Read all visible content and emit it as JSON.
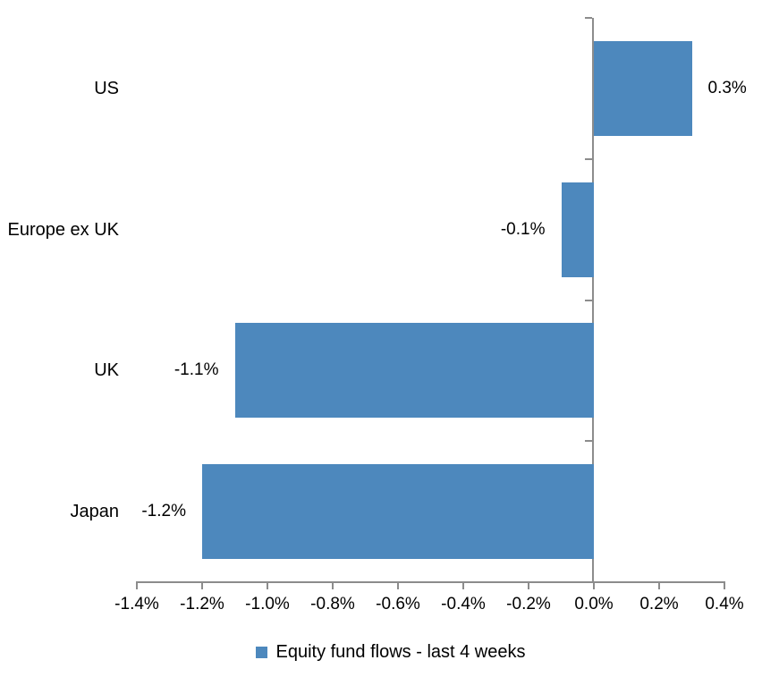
{
  "chart_data": {
    "type": "bar",
    "orientation": "horizontal",
    "title": "",
    "categories": [
      "US",
      "Europe ex UK",
      "UK",
      "Japan"
    ],
    "values": [
      0.3,
      -0.1,
      -1.1,
      -1.2
    ],
    "data_labels": [
      "0.3%",
      "-0.1%",
      "-1.1%",
      "-1.2%"
    ],
    "x_axis": {
      "min": -1.4,
      "max": 0.4,
      "step": 0.2,
      "tick_labels": [
        "-1.4%",
        "-1.2%",
        "-1.0%",
        "-0.8%",
        "-0.6%",
        "-0.4%",
        "-0.2%",
        "0.0%",
        "0.2%",
        "0.4%"
      ]
    },
    "legend": {
      "position": "bottom",
      "items": [
        {
          "label": "Equity fund flows - last 4 weeks",
          "color": "#4D88BD"
        }
      ]
    },
    "colors": {
      "bar": "#4D88BD",
      "axis": "#8C8C8C",
      "text": "#000000",
      "background": "#FFFFFF"
    },
    "grid": false
  }
}
